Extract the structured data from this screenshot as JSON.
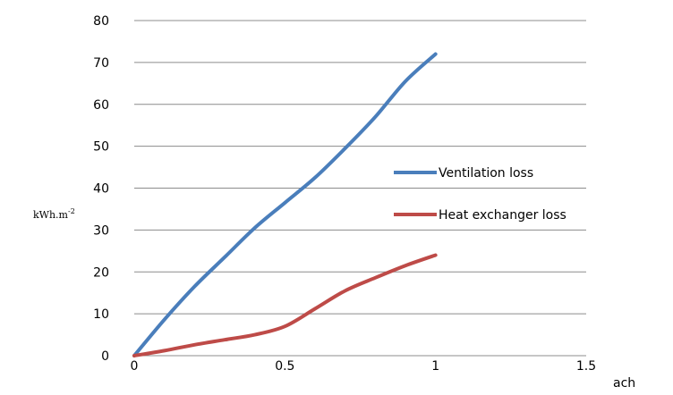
{
  "chart_data": {
    "type": "line",
    "xlabel": "ach",
    "ylabel": "kWh.m",
    "ylabel_superscript": "-2",
    "xlim": [
      0,
      1.5
    ],
    "ylim": [
      0,
      80
    ],
    "x_ticks": [
      0,
      0.5,
      1,
      1.5
    ],
    "y_ticks": [
      0,
      10,
      20,
      30,
      40,
      50,
      60,
      70,
      80
    ],
    "grid": "horizontal",
    "legend_position": "right",
    "series": [
      {
        "name": "Ventilation loss",
        "color": "#4a7ebb",
        "x": [
          0,
          0.1,
          0.2,
          0.3,
          0.4,
          0.5,
          0.6,
          0.7,
          0.8,
          0.9,
          1.0
        ],
        "y": [
          0,
          8.6,
          16.5,
          23.5,
          30.5,
          36.5,
          42.5,
          49.5,
          57,
          65.5,
          72
        ]
      },
      {
        "name": "Heat exchanger loss",
        "color": "#be4b48",
        "x": [
          0,
          0.1,
          0.2,
          0.3,
          0.4,
          0.5,
          0.6,
          0.7,
          0.8,
          0.9,
          1.0
        ],
        "y": [
          0,
          1.2,
          2.6,
          3.8,
          5.0,
          7.0,
          11.2,
          15.5,
          18.6,
          21.5,
          24
        ]
      }
    ]
  }
}
